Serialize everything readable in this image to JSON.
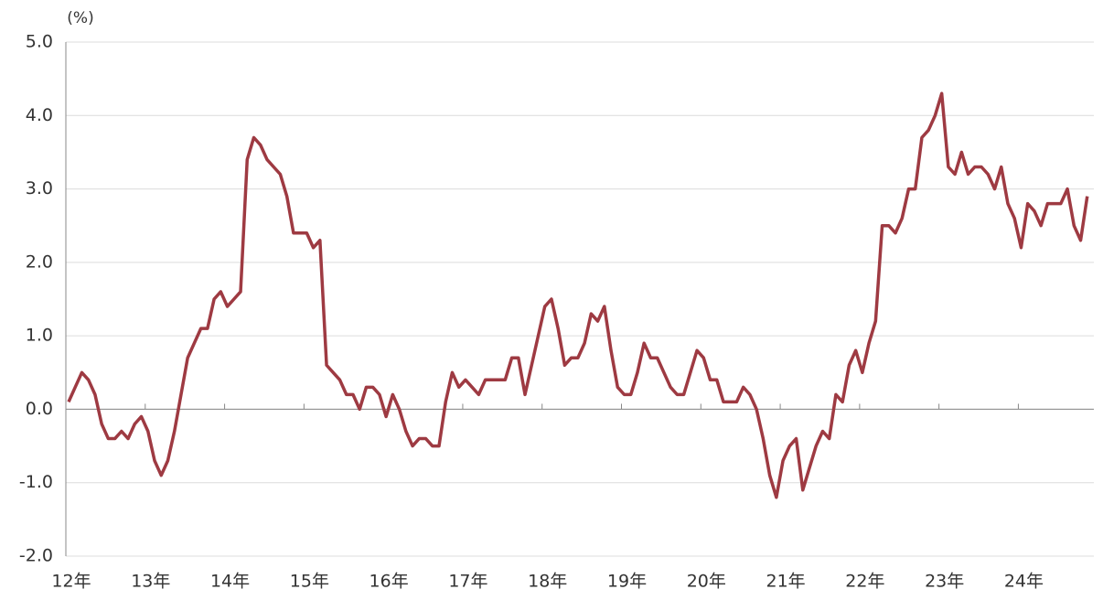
{
  "chart_data": {
    "type": "line",
    "y_label": "(%)",
    "categories": [
      "12年",
      null,
      null,
      null,
      null,
      null,
      null,
      null,
      null,
      null,
      null,
      null,
      "13年",
      null,
      null,
      null,
      null,
      null,
      null,
      null,
      null,
      null,
      null,
      null,
      "14年",
      null,
      null,
      null,
      null,
      null,
      null,
      null,
      null,
      null,
      null,
      null,
      "15年",
      null,
      null,
      null,
      null,
      null,
      null,
      null,
      null,
      null,
      null,
      null,
      "16年",
      null,
      null,
      null,
      null,
      null,
      null,
      null,
      null,
      null,
      null,
      null,
      "17年",
      null,
      null,
      null,
      null,
      null,
      null,
      null,
      null,
      null,
      null,
      null,
      "18年",
      null,
      null,
      null,
      null,
      null,
      null,
      null,
      null,
      null,
      null,
      null,
      "19年",
      null,
      null,
      null,
      null,
      null,
      null,
      null,
      null,
      null,
      null,
      null,
      "20年",
      null,
      null,
      null,
      null,
      null,
      null,
      null,
      null,
      null,
      null,
      null,
      "21年",
      null,
      null,
      null,
      null,
      null,
      null,
      null,
      null,
      null,
      null,
      null,
      "22年",
      null,
      null,
      null,
      null,
      null,
      null,
      null,
      null,
      null,
      null,
      null,
      "23年",
      null,
      null,
      null,
      null,
      null,
      null,
      null,
      null,
      null,
      null,
      null,
      "24年",
      null,
      null,
      null,
      null,
      null,
      null,
      null,
      null,
      null,
      null
    ],
    "values": [
      0.1,
      0.3,
      0.5,
      0.4,
      0.2,
      -0.2,
      -0.4,
      -0.4,
      -0.3,
      -0.4,
      -0.2,
      -0.1,
      -0.3,
      -0.7,
      -0.9,
      -0.7,
      -0.3,
      0.2,
      0.7,
      0.9,
      1.1,
      1.1,
      1.5,
      1.6,
      1.4,
      1.5,
      1.6,
      3.4,
      3.7,
      3.6,
      3.4,
      3.3,
      3.2,
      2.9,
      2.4,
      2.4,
      2.4,
      2.2,
      2.3,
      0.6,
      0.5,
      0.4,
      0.2,
      0.2,
      0.0,
      0.3,
      0.3,
      0.2,
      -0.1,
      0.2,
      0.0,
      -0.3,
      -0.5,
      -0.4,
      -0.4,
      -0.5,
      -0.5,
      0.1,
      0.5,
      0.3,
      0.4,
      0.3,
      0.2,
      0.4,
      0.4,
      0.4,
      0.4,
      0.7,
      0.7,
      0.2,
      0.6,
      1.0,
      1.4,
      1.5,
      1.1,
      0.6,
      0.7,
      0.7,
      0.9,
      1.3,
      1.2,
      1.4,
      0.8,
      0.3,
      0.2,
      0.2,
      0.5,
      0.9,
      0.7,
      0.7,
      0.5,
      0.3,
      0.2,
      0.2,
      0.5,
      0.8,
      0.7,
      0.4,
      0.4,
      0.1,
      0.1,
      0.1,
      0.3,
      0.2,
      0.0,
      -0.4,
      -0.9,
      -1.2,
      -0.7,
      -0.5,
      -0.4,
      -1.1,
      -0.8,
      -0.5,
      -0.3,
      -0.4,
      0.2,
      0.1,
      0.6,
      0.8,
      0.5,
      0.9,
      1.2,
      2.5,
      2.5,
      2.4,
      2.6,
      3.0,
      3.0,
      3.7,
      3.8,
      4.0,
      4.3,
      3.3,
      3.2,
      3.5,
      3.2,
      3.3,
      3.3,
      3.2,
      3.0,
      3.3,
      2.8,
      2.6,
      2.2,
      2.8,
      2.7,
      2.5,
      2.8,
      2.8,
      2.8,
      3.0,
      2.5,
      2.3,
      2.9
    ],
    "color": "#9e3a42",
    "ylim": [
      -2,
      5
    ],
    "yticks": [
      {
        "value": -2,
        "label": "-2.0"
      },
      {
        "value": -1,
        "label": "-1.0"
      },
      {
        "value": 0,
        "label": "0.0"
      },
      {
        "value": 1,
        "label": "1.0"
      },
      {
        "value": 2,
        "label": "2.0"
      },
      {
        "value": 3,
        "label": "3.0"
      },
      {
        "value": 4,
        "label": "4.0"
      },
      {
        "value": 5,
        "label": "5.0"
      }
    ],
    "grid": true
  }
}
